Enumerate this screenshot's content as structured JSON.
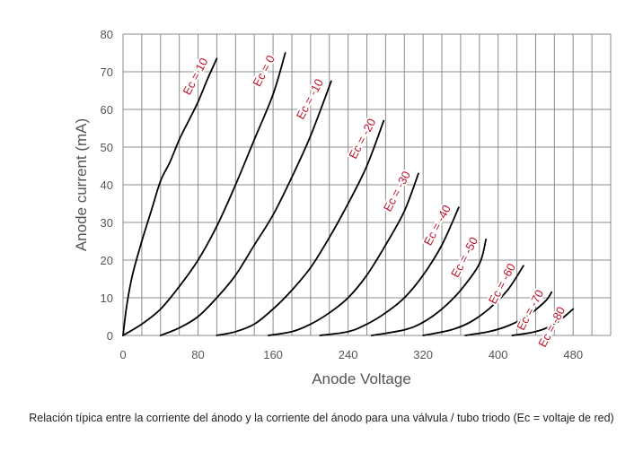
{
  "chart_data": {
    "type": "line",
    "xlabel": "Anode Voltage",
    "ylabel": "Anode current (mA)",
    "xlim": [
      0,
      520
    ],
    "ylim": [
      0,
      80
    ],
    "x_ticks": [
      "0",
      "80",
      "160",
      "240",
      "320",
      "400",
      "480"
    ],
    "y_ticks": [
      "0",
      "10",
      "20",
      "30",
      "40",
      "50",
      "60",
      "70",
      "80"
    ],
    "grid": true,
    "series": [
      {
        "name": "Ec = 10",
        "points": [
          [
            0,
            0
          ],
          [
            4,
            8
          ],
          [
            10,
            16
          ],
          [
            20,
            25
          ],
          [
            30,
            33
          ],
          [
            40,
            41
          ],
          [
            50,
            46
          ],
          [
            60,
            52
          ],
          [
            70,
            57
          ],
          [
            80,
            62
          ],
          [
            90,
            68
          ],
          [
            100,
            73.5
          ]
        ]
      },
      {
        "name": "Ec = 0",
        "points": [
          [
            0,
            0
          ],
          [
            20,
            3
          ],
          [
            40,
            7
          ],
          [
            60,
            13
          ],
          [
            80,
            20
          ],
          [
            100,
            29
          ],
          [
            120,
            40
          ],
          [
            140,
            52
          ],
          [
            160,
            64
          ],
          [
            173,
            75
          ]
        ]
      },
      {
        "name": "Ec = -10",
        "points": [
          [
            40,
            0
          ],
          [
            60,
            2
          ],
          [
            80,
            5
          ],
          [
            100,
            10
          ],
          [
            120,
            16
          ],
          [
            140,
            24
          ],
          [
            160,
            32
          ],
          [
            180,
            42
          ],
          [
            200,
            53
          ],
          [
            222,
            67.5
          ]
        ]
      },
      {
        "name": "Ec = -20",
        "points": [
          [
            100,
            0
          ],
          [
            120,
            1
          ],
          [
            140,
            3
          ],
          [
            160,
            7
          ],
          [
            180,
            12
          ],
          [
            200,
            18
          ],
          [
            220,
            26
          ],
          [
            240,
            35
          ],
          [
            260,
            45
          ],
          [
            278,
            57
          ]
        ]
      },
      {
        "name": "Ec = -30",
        "points": [
          [
            155,
            0
          ],
          [
            180,
            1
          ],
          [
            200,
            3
          ],
          [
            220,
            6
          ],
          [
            240,
            10
          ],
          [
            260,
            16
          ],
          [
            280,
            24
          ],
          [
            300,
            33
          ],
          [
            315,
            43
          ]
        ]
      },
      {
        "name": "Ec = -40",
        "points": [
          [
            210,
            0
          ],
          [
            240,
            1
          ],
          [
            260,
            3
          ],
          [
            280,
            6
          ],
          [
            300,
            10
          ],
          [
            320,
            16
          ],
          [
            340,
            24
          ],
          [
            358,
            34
          ]
        ]
      },
      {
        "name": "Ec = -50",
        "points": [
          [
            265,
            0
          ],
          [
            300,
            1.5
          ],
          [
            320,
            3.5
          ],
          [
            340,
            7
          ],
          [
            360,
            12
          ],
          [
            380,
            19
          ],
          [
            387,
            25.5
          ]
        ]
      },
      {
        "name": "Ec = -60",
        "points": [
          [
            320,
            0
          ],
          [
            350,
            1.5
          ],
          [
            370,
            3.5
          ],
          [
            390,
            7
          ],
          [
            410,
            12
          ],
          [
            427,
            18.5
          ]
        ]
      },
      {
        "name": "Ec = -70",
        "points": [
          [
            365,
            0
          ],
          [
            390,
            1
          ],
          [
            410,
            2.5
          ],
          [
            430,
            5
          ],
          [
            450,
            9
          ],
          [
            457,
            11.5
          ]
        ]
      },
      {
        "name": "Ec = -80",
        "points": [
          [
            415,
            0
          ],
          [
            440,
            1
          ],
          [
            460,
            3
          ],
          [
            480,
            7
          ]
        ]
      }
    ]
  },
  "caption": "Relación típica entre la corriente del ánodo y la corriente del ánodo para una válvula / tubo triodo (Ec = voltaje de red)",
  "colors": {
    "curve": "#000000",
    "curve_label": "#c0142b",
    "grid": "#8c8c8c",
    "axis_text": "#555555"
  }
}
